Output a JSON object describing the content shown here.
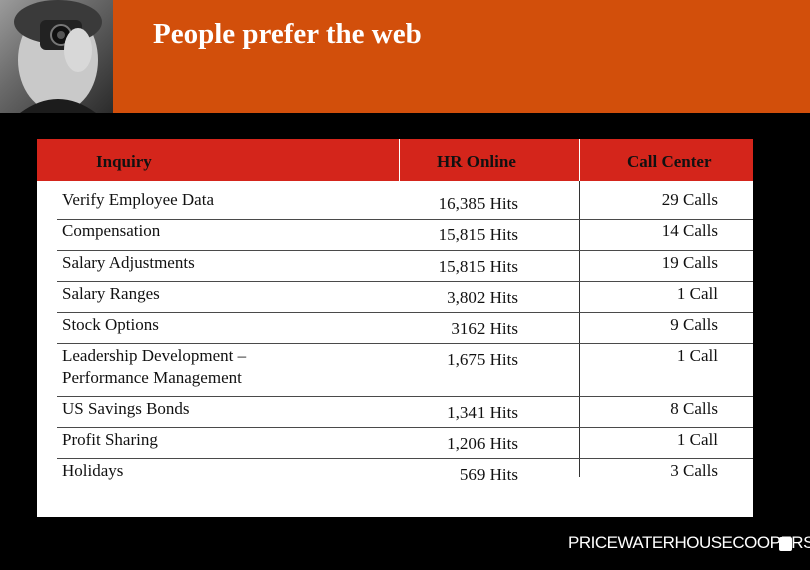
{
  "slide": {
    "title": "People prefer the web"
  },
  "table": {
    "headers": [
      "Inquiry",
      "HR Online",
      "Call Center"
    ],
    "rows": [
      {
        "inquiry": "Verify Employee Data",
        "hr_online": "16,385 Hits",
        "call_center": "29 Calls"
      },
      {
        "inquiry": "Compensation",
        "hr_online": "15,815 Hits",
        "call_center": "14 Calls"
      },
      {
        "inquiry": "Salary Adjustments",
        "hr_online": "15,815 Hits",
        "call_center": "19 Calls"
      },
      {
        "inquiry": "Salary Ranges",
        "hr_online": "3,802 Hits",
        "call_center": "1 Call"
      },
      {
        "inquiry": "Stock Options",
        "hr_online": "3162 Hits",
        "call_center": "9 Calls"
      },
      {
        "inquiry": "Leadership Development –",
        "inquiry_line2": "Performance Management",
        "hr_online": "1,675 Hits",
        "call_center": "1 Call"
      },
      {
        "inquiry": "US Savings Bonds",
        "hr_online": "1,341 Hits",
        "call_center": "8 Calls"
      },
      {
        "inquiry": "Profit Sharing",
        "hr_online": "1,206 Hits",
        "call_center": "1 Call"
      },
      {
        "inquiry": "Holidays",
        "hr_online": "569 Hits",
        "call_center": "3 Calls"
      }
    ]
  },
  "footer": {
    "logo_text": "PRICEWATERHOUSECOOPERS"
  },
  "colors": {
    "banner": "#d24f0b",
    "header_row": "#d4251b",
    "background": "#000000"
  }
}
